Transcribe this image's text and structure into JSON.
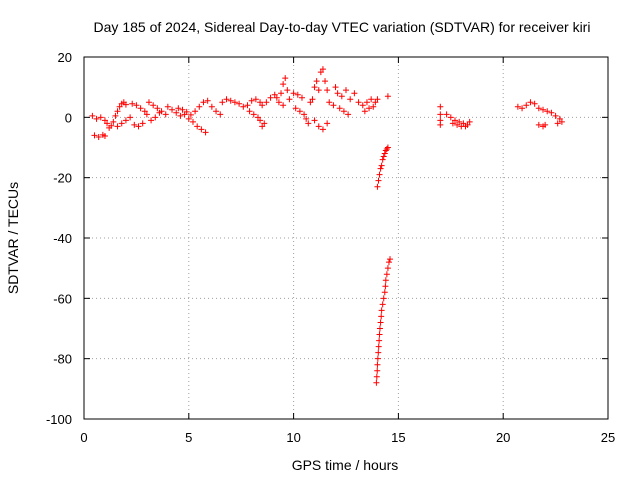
{
  "chart_data": {
    "type": "scatter",
    "title": "Day 185 of 2024, Sidereal Day-to-day VTEC variation (SDTVAR) for receiver kiri",
    "xlabel": "GPS time / hours",
    "ylabel": "SDTVAR / TECUs",
    "xlim": [
      0,
      25
    ],
    "ylim": [
      -100,
      20
    ],
    "x_ticks": [
      0,
      5,
      10,
      15,
      20,
      25
    ],
    "x_tick_labels": [
      "0",
      "5",
      "10",
      "15",
      "20",
      "25"
    ],
    "y_ticks": [
      -100,
      -80,
      -60,
      -40,
      -20,
      0,
      20
    ],
    "y_tick_labels": [
      "-100",
      "-80",
      "-60",
      "-40",
      "-20",
      "0",
      "20"
    ],
    "grid": true,
    "marker": "plus",
    "color": "#ff0000",
    "series": [
      {
        "name": "SDTVAR",
        "points": [
          [
            0.4,
            0.5
          ],
          [
            0.6,
            -0.5
          ],
          [
            0.8,
            0.0
          ],
          [
            1.0,
            -1.0
          ],
          [
            0.5,
            -6.0
          ],
          [
            0.7,
            -6.5
          ],
          [
            0.9,
            -5.8
          ],
          [
            1.0,
            -6.2
          ],
          [
            1.1,
            -2.0
          ],
          [
            1.2,
            -3.5
          ],
          [
            1.3,
            -2.8
          ],
          [
            1.4,
            -1.5
          ],
          [
            1.5,
            0.5
          ],
          [
            1.6,
            2.0
          ],
          [
            1.7,
            3.5
          ],
          [
            1.8,
            4.5
          ],
          [
            1.9,
            5.0
          ],
          [
            2.0,
            4.2
          ],
          [
            1.6,
            -3.0
          ],
          [
            1.8,
            -2.0
          ],
          [
            2.0,
            -1.0
          ],
          [
            2.2,
            0.0
          ],
          [
            2.3,
            4.5
          ],
          [
            2.5,
            4.0
          ],
          [
            2.7,
            3.0
          ],
          [
            2.9,
            2.0
          ],
          [
            3.0,
            1.0
          ],
          [
            2.4,
            -2.5
          ],
          [
            2.6,
            -3.0
          ],
          [
            2.8,
            -2.0
          ],
          [
            3.1,
            5.0
          ],
          [
            3.3,
            4.0
          ],
          [
            3.5,
            3.0
          ],
          [
            3.7,
            2.0
          ],
          [
            3.9,
            1.0
          ],
          [
            3.2,
            -1.0
          ],
          [
            3.4,
            0.0
          ],
          [
            3.6,
            1.5
          ],
          [
            4.0,
            3.5
          ],
          [
            4.2,
            2.5
          ],
          [
            4.4,
            1.5
          ],
          [
            4.6,
            0.5
          ],
          [
            4.8,
            1.0
          ],
          [
            4.5,
            3.0
          ],
          [
            4.7,
            2.5
          ],
          [
            4.9,
            1.8
          ],
          [
            5.0,
            -0.5
          ],
          [
            5.1,
            0.8
          ],
          [
            5.3,
            2.0
          ],
          [
            5.5,
            3.5
          ],
          [
            5.7,
            5.0
          ],
          [
            5.9,
            5.5
          ],
          [
            5.2,
            -1.5
          ],
          [
            5.4,
            -3.0
          ],
          [
            5.6,
            -4.0
          ],
          [
            5.8,
            -5.0
          ],
          [
            6.1,
            3.5
          ],
          [
            6.3,
            2.0
          ],
          [
            6.5,
            1.0
          ],
          [
            6.6,
            5.0
          ],
          [
            6.8,
            6.0
          ],
          [
            7.0,
            5.5
          ],
          [
            7.2,
            5.0
          ],
          [
            7.4,
            4.5
          ],
          [
            7.6,
            3.5
          ],
          [
            7.8,
            4.0
          ],
          [
            8.0,
            5.5
          ],
          [
            8.2,
            6.0
          ],
          [
            8.4,
            5.0
          ],
          [
            7.9,
            2.0
          ],
          [
            8.1,
            1.0
          ],
          [
            8.3,
            0.0
          ],
          [
            8.5,
            4.0
          ],
          [
            8.7,
            5.0
          ],
          [
            8.9,
            6.5
          ],
          [
            9.1,
            7.5
          ],
          [
            9.2,
            6.5
          ],
          [
            8.4,
            -1.0
          ],
          [
            8.6,
            -2.0
          ],
          [
            8.5,
            -3.0
          ],
          [
            9.3,
            5.0
          ],
          [
            9.4,
            8.0
          ],
          [
            9.5,
            11.0
          ],
          [
            9.6,
            13.0
          ],
          [
            9.7,
            9.0
          ],
          [
            9.5,
            4.0
          ],
          [
            9.8,
            6.0
          ],
          [
            10.0,
            8.0
          ],
          [
            10.2,
            7.5
          ],
          [
            10.4,
            6.5
          ],
          [
            10.1,
            3.0
          ],
          [
            10.3,
            2.0
          ],
          [
            10.5,
            1.0
          ],
          [
            10.6,
            -0.5
          ],
          [
            10.7,
            -2.0
          ],
          [
            10.8,
            5.0
          ],
          [
            10.9,
            6.0
          ],
          [
            11.0,
            10.0
          ],
          [
            11.1,
            12.0
          ],
          [
            11.2,
            9.0
          ],
          [
            11.3,
            15.0
          ],
          [
            11.4,
            16.0
          ],
          [
            11.5,
            12.0
          ],
          [
            11.6,
            9.0
          ],
          [
            11.0,
            -1.0
          ],
          [
            11.2,
            -3.0
          ],
          [
            11.4,
            -4.0
          ],
          [
            11.6,
            -2.0
          ],
          [
            11.7,
            5.0
          ],
          [
            11.9,
            4.0
          ],
          [
            12.0,
            10.0
          ],
          [
            12.1,
            8.0
          ],
          [
            12.3,
            7.0
          ],
          [
            12.5,
            9.0
          ],
          [
            12.7,
            6.0
          ],
          [
            12.9,
            8.0
          ],
          [
            13.1,
            5.0
          ],
          [
            12.2,
            3.0
          ],
          [
            12.4,
            2.0
          ],
          [
            12.6,
            1.0
          ],
          [
            13.3,
            4.0
          ],
          [
            13.5,
            5.0
          ],
          [
            13.7,
            6.0
          ],
          [
            13.9,
            5.0
          ],
          [
            14.0,
            6.0
          ],
          [
            13.4,
            2.0
          ],
          [
            13.6,
            3.0
          ],
          [
            13.8,
            3.5
          ],
          [
            14.5,
            7.0
          ],
          [
            14.0,
            -23.0
          ],
          [
            14.05,
            -21.0
          ],
          [
            14.1,
            -19.0
          ],
          [
            14.15,
            -17.0
          ],
          [
            14.2,
            -16.0
          ],
          [
            14.25,
            -14.0
          ],
          [
            14.3,
            -13.0
          ],
          [
            14.35,
            -12.0
          ],
          [
            14.4,
            -11.0
          ],
          [
            14.45,
            -10.5
          ],
          [
            14.5,
            -10.0
          ],
          [
            13.95,
            -88.0
          ],
          [
            13.97,
            -86.0
          ],
          [
            13.99,
            -84.0
          ],
          [
            14.0,
            -82.0
          ],
          [
            14.02,
            -80.0
          ],
          [
            14.04,
            -78.0
          ],
          [
            14.06,
            -76.0
          ],
          [
            14.08,
            -74.0
          ],
          [
            14.1,
            -72.0
          ],
          [
            14.12,
            -70.0
          ],
          [
            14.15,
            -68.0
          ],
          [
            14.18,
            -66.0
          ],
          [
            14.2,
            -64.0
          ],
          [
            14.25,
            -62.0
          ],
          [
            14.3,
            -60.0
          ],
          [
            14.35,
            -58.0
          ],
          [
            14.38,
            -56.0
          ],
          [
            14.4,
            -54.0
          ],
          [
            14.45,
            -52.0
          ],
          [
            14.5,
            -50.0
          ],
          [
            14.55,
            -48.0
          ],
          [
            14.6,
            -47.0
          ],
          [
            17.0,
            3.5
          ],
          [
            17.0,
            1.0
          ],
          [
            17.0,
            -1.0
          ],
          [
            17.0,
            -2.5
          ],
          [
            17.3,
            1.0
          ],
          [
            17.5,
            0.0
          ],
          [
            17.7,
            -1.0
          ],
          [
            17.9,
            -1.5
          ],
          [
            18.1,
            -2.0
          ],
          [
            18.3,
            -2.5
          ],
          [
            18.4,
            -1.5
          ],
          [
            18.2,
            -3.0
          ],
          [
            17.6,
            -2.0
          ],
          [
            17.8,
            -2.5
          ],
          [
            18.0,
            -3.0
          ],
          [
            20.7,
            3.5
          ],
          [
            20.9,
            3.0
          ],
          [
            21.1,
            4.0
          ],
          [
            21.3,
            5.0
          ],
          [
            21.5,
            4.5
          ],
          [
            21.7,
            3.0
          ],
          [
            21.9,
            2.5
          ],
          [
            22.1,
            2.0
          ],
          [
            22.3,
            1.5
          ],
          [
            22.5,
            0.5
          ],
          [
            22.7,
            -0.5
          ],
          [
            22.8,
            -1.5
          ],
          [
            22.6,
            -2.0
          ],
          [
            21.7,
            -2.5
          ],
          [
            21.9,
            -3.0
          ],
          [
            22.0,
            -2.5
          ]
        ]
      }
    ]
  }
}
